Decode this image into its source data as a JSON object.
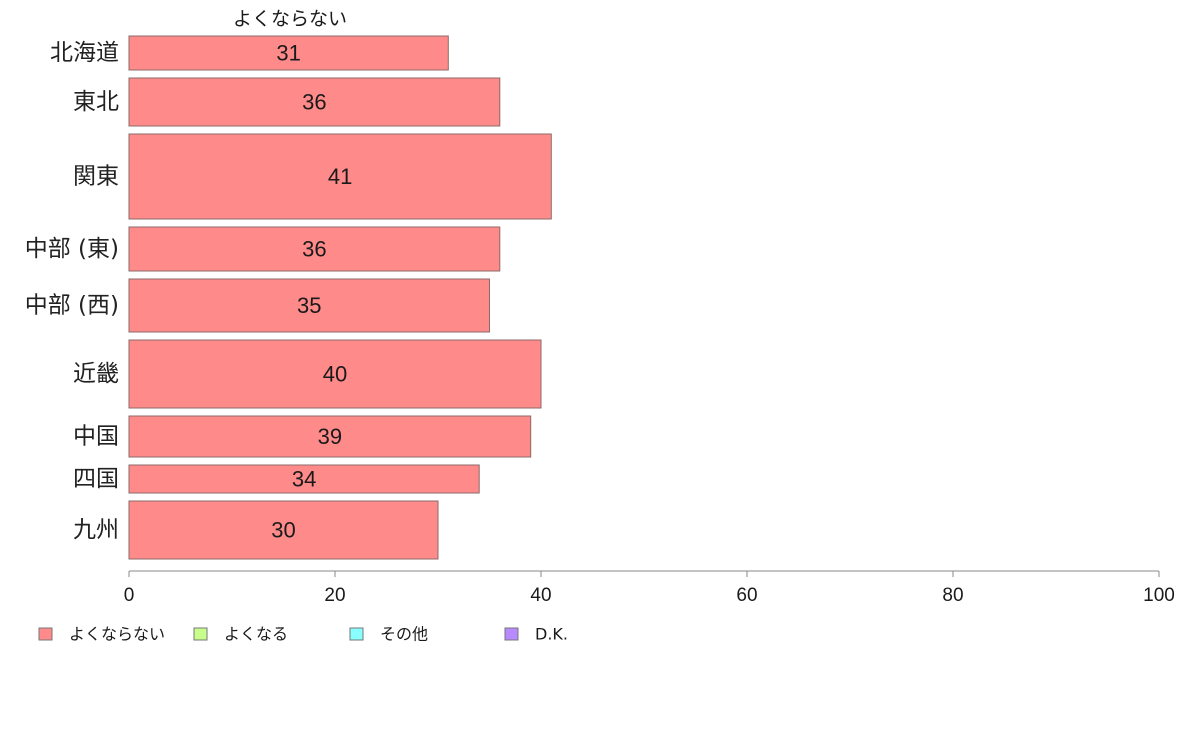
{
  "chart_data": {
    "type": "bar",
    "orientation": "horizontal",
    "series_header": "よくならない",
    "categories": [
      "北海道",
      "東北",
      "関東",
      "中部 (東)",
      "中部 (西)",
      "近畿",
      "中国",
      "四国",
      "九州"
    ],
    "values": [
      31,
      36,
      41,
      36,
      35,
      40,
      39,
      34,
      30
    ],
    "weights": [
      34,
      48,
      85,
      44,
      53,
      68,
      41,
      28,
      58
    ],
    "xlim": [
      0,
      100
    ],
    "xticks": [
      0,
      20,
      40,
      60,
      80,
      100
    ],
    "grid": false,
    "legend": {
      "placement": "bottom-left",
      "entries": [
        {
          "label": "よくならない",
          "color": "#ff8a8a"
        },
        {
          "label": "よくなる",
          "color": "#c8ff8a"
        },
        {
          "label": "その他",
          "color": "#8affff"
        },
        {
          "label": "D.K.",
          "color": "#b88aff"
        }
      ]
    },
    "bar_color": "#ff8a8a"
  }
}
